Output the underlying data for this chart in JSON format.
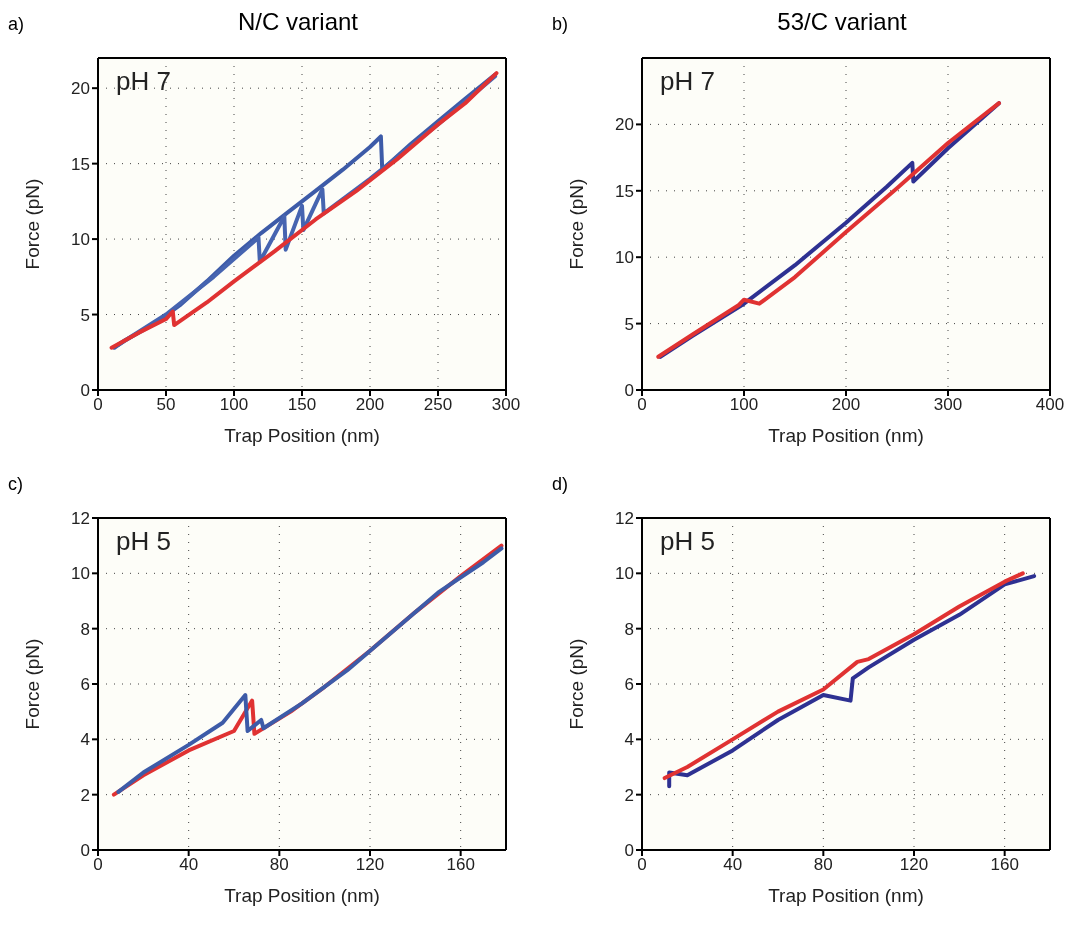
{
  "chart_data": [
    {
      "type": "line",
      "title": "N/C variant",
      "xlabel": "Trap Position (nm)",
      "ylabel": "Force (pN)",
      "annotations": [
        "a)",
        "pH 7"
      ],
      "xlim": [
        0,
        300
      ],
      "xticks": [
        0,
        50,
        100,
        150,
        200,
        250,
        300
      ],
      "ylim": [
        0,
        22
      ],
      "yticks": [
        0,
        5,
        10,
        15,
        20
      ],
      "grid": true,
      "series": [
        {
          "color": "#3d5ba8",
          "x": [
            12,
            20,
            40,
            60,
            80,
            100,
            120,
            140,
            160,
            180,
            200,
            208,
            209,
            230,
            250,
            270,
            292
          ],
          "values": [
            2.8,
            3.3,
            4.3,
            5.6,
            7.2,
            8.9,
            10.4,
            11.8,
            13.2,
            14.6,
            16.1,
            16.8,
            14.6,
            16.3,
            17.8,
            19.3,
            20.9
          ]
        },
        {
          "color": "#4664b0",
          "x": [
            15,
            50,
            85,
            118,
            119,
            137,
            138,
            150,
            151,
            165,
            166,
            200,
            250,
            292
          ],
          "values": [
            3,
            5,
            7.5,
            10.1,
            8.5,
            11.5,
            9.3,
            12.2,
            10.6,
            13.3,
            11.7,
            14,
            17.6,
            20.8
          ]
        },
        {
          "color": "#e03232",
          "x": [
            10,
            30,
            50,
            55,
            56,
            80,
            100,
            130,
            160,
            190,
            220,
            250,
            270,
            293
          ],
          "values": [
            2.8,
            3.8,
            4.7,
            5.2,
            4.3,
            5.8,
            7.2,
            9.2,
            11.3,
            13.2,
            15.3,
            17.6,
            19,
            21
          ]
        }
      ]
    },
    {
      "type": "line",
      "title": "53/C variant",
      "xlabel": "Trap Position (nm)",
      "ylabel": "Force (pN)",
      "annotations": [
        "b)",
        "pH 7"
      ],
      "xlim": [
        0,
        400
      ],
      "xticks": [
        0,
        100,
        200,
        300,
        400
      ],
      "ylim": [
        0,
        25
      ],
      "yticks": [
        0,
        5,
        10,
        15,
        20
      ],
      "grid": true,
      "series": [
        {
          "color": "#2e3192",
          "x": [
            18,
            50,
            100,
            150,
            200,
            240,
            265,
            266,
            300,
            350
          ],
          "values": [
            2.5,
            4.1,
            6.5,
            9.4,
            12.6,
            15.3,
            17.1,
            15.7,
            18.2,
            21.6
          ]
        },
        {
          "color": "#e03232",
          "x": [
            16,
            50,
            95,
            100,
            115,
            150,
            200,
            250,
            300,
            350
          ],
          "values": [
            2.5,
            4.2,
            6.4,
            6.8,
            6.5,
            8.5,
            11.9,
            15.2,
            18.6,
            21.6
          ]
        }
      ]
    },
    {
      "type": "line",
      "xlabel": "Trap Position (nm)",
      "ylabel": "Force (pN)",
      "annotations": [
        "c)",
        "pH 5"
      ],
      "xlim": [
        0,
        180
      ],
      "xticks": [
        0,
        40,
        80,
        120,
        160
      ],
      "ylim": [
        0,
        12
      ],
      "yticks": [
        0,
        2,
        4,
        6,
        8,
        10,
        12
      ],
      "grid": true,
      "series": [
        {
          "color": "#e03232",
          "x": [
            7,
            20,
            40,
            60,
            68,
            69,
            85,
            100,
            120,
            140,
            160,
            178
          ],
          "values": [
            2,
            2.7,
            3.6,
            4.3,
            5.4,
            4.2,
            5,
            5.9,
            7.2,
            8.6,
            9.9,
            11
          ]
        },
        {
          "color": "#3d5ba8",
          "x": [
            9,
            20,
            40,
            55,
            65,
            66,
            72,
            73,
            90,
            110,
            130,
            150,
            170,
            178
          ],
          "values": [
            2.1,
            2.8,
            3.8,
            4.6,
            5.6,
            4.3,
            4.7,
            4.4,
            5.3,
            6.5,
            7.9,
            9.3,
            10.4,
            10.9
          ]
        }
      ]
    },
    {
      "type": "line",
      "xlabel": "Trap Position (nm)",
      "ylabel": "Force (pN)",
      "annotations": [
        "d)",
        "pH 5"
      ],
      "xlim": [
        0,
        180
      ],
      "xticks": [
        0,
        40,
        80,
        120,
        160
      ],
      "ylim": [
        0,
        12
      ],
      "yticks": [
        0,
        2,
        4,
        6,
        8,
        10,
        12
      ],
      "grid": true,
      "series": [
        {
          "color": "#2e3192",
          "x": [
            12,
            12,
            20,
            40,
            60,
            80,
            92,
            93,
            100,
            120,
            140,
            160,
            173
          ],
          "values": [
            2.3,
            2.8,
            2.7,
            3.6,
            4.7,
            5.6,
            5.4,
            6.2,
            6.6,
            7.6,
            8.5,
            9.6,
            9.9
          ]
        },
        {
          "color": "#e03232",
          "x": [
            10,
            20,
            40,
            60,
            80,
            95,
            100,
            120,
            140,
            160,
            168
          ],
          "values": [
            2.6,
            3,
            4,
            5,
            5.8,
            6.8,
            6.9,
            7.8,
            8.8,
            9.7,
            10
          ]
        }
      ]
    }
  ]
}
